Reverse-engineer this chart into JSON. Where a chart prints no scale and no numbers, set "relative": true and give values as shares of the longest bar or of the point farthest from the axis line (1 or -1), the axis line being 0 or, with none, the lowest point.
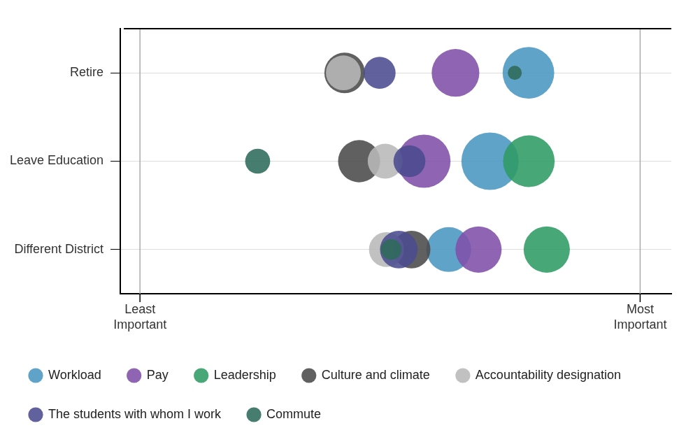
{
  "chart_data": {
    "type": "bubble",
    "orientation": "horizontal",
    "relative": true,
    "categories": [
      "Retire",
      "Leave Education",
      "Different District"
    ],
    "grid": "y",
    "legend": "bottom",
    "marker": "circle",
    "ref_lines": [
      {
        "axis": "x",
        "value": 0.046,
        "label": "Least Important",
        "color": "#aaaaaa"
      },
      {
        "axis": "x",
        "value": 1.219,
        "label": "Most Important",
        "color": "#aaaaaa"
      }
    ],
    "series": [
      {
        "name": "Leadership",
        "color": "#2e9b63",
        "values": [
          null,
          0.958,
          1
        ],
        "sizes": [
          null,
          0.81,
          0.65
        ]
      },
      {
        "name": "The students with whom I work",
        "color": "#4b4b8f",
        "values": [
          0.608,
          0.678,
          0.653
        ],
        "sizes": [
          0.31,
          0.31,
          0.43
        ]
      },
      {
        "name": "Workload",
        "color": "#4a96c2",
        "values": [
          0.957,
          0.867,
          0.77
        ],
        "sizes": [
          0.81,
          1,
          0.61
        ]
      },
      {
        "name": "Pay",
        "color": "#8050a8",
        "values": [
          0.786,
          0.712,
          0.84
        ],
        "sizes": [
          0.69,
          0.86,
          0.65
        ]
      },
      {
        "name": "Culture and climate",
        "color": "#4a4a4a",
        "values": [
          0.526,
          0.56,
          0.683
        ],
        "sizes": [
          0.5,
          0.54,
          0.43
        ]
      },
      {
        "name": "Commute",
        "color": "#2e6b5a",
        "values": [
          0.925,
          0.322,
          0.635
        ],
        "sizes": [
          0.06,
          0.19,
          0.13
        ]
      },
      {
        "name": "Accountability designation",
        "color": "#b8b8b8",
        "values": [
          0.523,
          0.621,
          0.624
        ],
        "sizes": [
          0.37,
          0.37,
          0.37
        ]
      }
    ]
  }
}
